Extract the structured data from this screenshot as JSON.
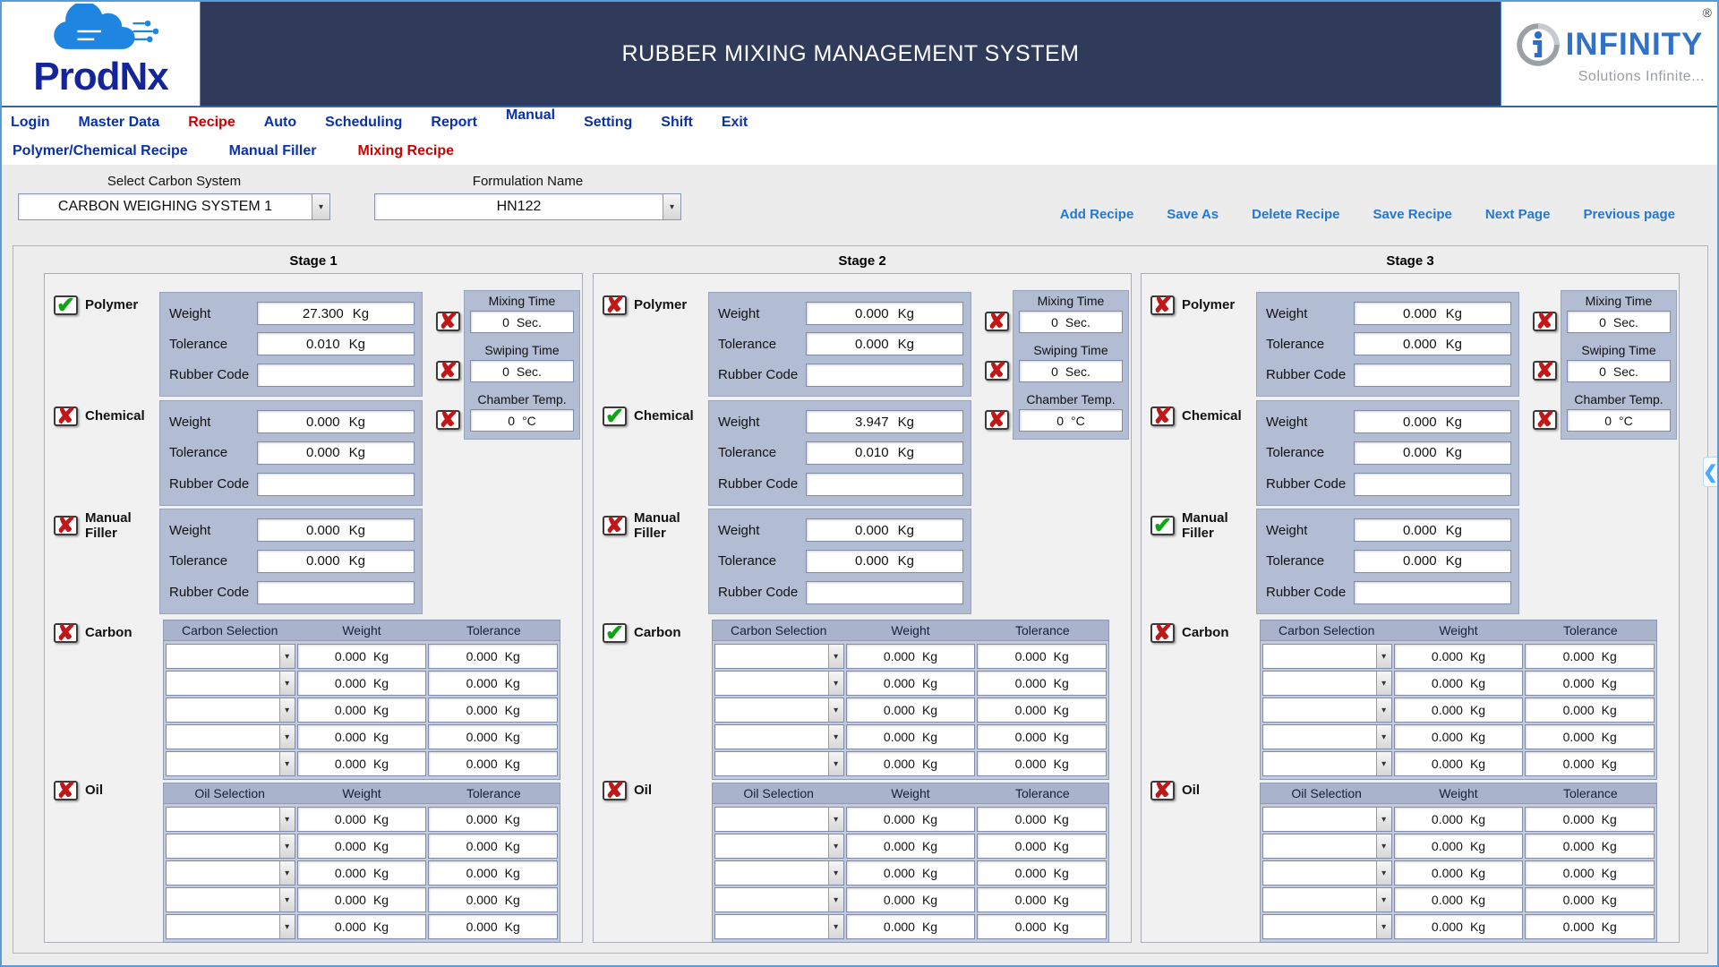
{
  "header": {
    "title": "RUBBER MIXING MANAGEMENT SYSTEM",
    "logo_left": {
      "text": "ProdNx"
    },
    "logo_right": {
      "brand": "INFINITY",
      "tagline": "Solutions Infinite...",
      "registered": "®"
    }
  },
  "menu": {
    "items": [
      {
        "label": "Login",
        "active": false
      },
      {
        "label": "Master Data",
        "active": false
      },
      {
        "label": "Recipe",
        "active": true
      },
      {
        "label": "Auto",
        "active": false
      },
      {
        "label": "Scheduling",
        "active": false
      },
      {
        "label": "Report",
        "active": false
      },
      {
        "label": "Manual",
        "active": false
      },
      {
        "label": "Setting",
        "active": false
      },
      {
        "label": "Shift",
        "active": false
      },
      {
        "label": "Exit",
        "active": false
      }
    ]
  },
  "submenu": {
    "items": [
      {
        "label": "Polymer/Chemical Recipe",
        "active": false
      },
      {
        "label": "Manual Filler",
        "active": false
      },
      {
        "label": "Mixing Recipe",
        "active": true
      }
    ]
  },
  "toolbar": {
    "carbon_system": {
      "label": "Select Carbon System",
      "value": "CARBON  WEIGHING SYSTEM 1"
    },
    "formulation": {
      "label": "Formulation Name",
      "value": "HN122"
    },
    "actions": [
      {
        "label": "Add Recipe"
      },
      {
        "label": "Save As"
      },
      {
        "label": "Delete Recipe"
      },
      {
        "label": "Save Recipe"
      },
      {
        "label": "Next Page"
      },
      {
        "label": "Previous page"
      }
    ]
  },
  "labels": {
    "polymer": "Polymer",
    "chemical": "Chemical",
    "manual_filler": "Manual Filler",
    "carbon": "Carbon",
    "oil": "Oil",
    "weight": "Weight",
    "tolerance": "Tolerance",
    "rubber_code": "Rubber Code",
    "mixing_time": "Mixing Time",
    "swiping_time": "Swiping Time",
    "chamber_temp": "Chamber Temp.",
    "carbon_selection": "Carbon Selection",
    "oil_selection": "Oil Selection"
  },
  "units": {
    "kg": "Kg",
    "sec": "Sec.",
    "temp": "°C"
  },
  "icons": {
    "check": "✔",
    "cross": "✘",
    "dropdown": "▾",
    "collapse": "❮"
  },
  "colors": {
    "header_navy": "#303b5c",
    "menu_blue": "#0a31a8",
    "active_red": "#d00000",
    "link_blue": "#2478cf",
    "group_bg": "#b2bcd2",
    "check_green": "#0da512",
    "cross_red": "#c21717"
  },
  "stages": [
    {
      "title": "Stage 1",
      "polymer": {
        "enabled": true,
        "weight": "27.300",
        "tolerance": "0.010",
        "rubber_code": ""
      },
      "chemical": {
        "enabled": false,
        "weight": "0.000",
        "tolerance": "0.000",
        "rubber_code": ""
      },
      "manual_filler": {
        "enabled": false,
        "weight": "0.000",
        "tolerance": "0.000",
        "rubber_code": ""
      },
      "times": {
        "mixing": {
          "enabled": false,
          "value": "0"
        },
        "swiping": {
          "enabled": false,
          "value": "0"
        },
        "chamber": {
          "enabled": false,
          "value": "0"
        }
      },
      "carbon": {
        "enabled": false,
        "rows": [
          {
            "selection": "",
            "weight": "0.000",
            "tolerance": "0.000"
          },
          {
            "selection": "",
            "weight": "0.000",
            "tolerance": "0.000"
          },
          {
            "selection": "",
            "weight": "0.000",
            "tolerance": "0.000"
          },
          {
            "selection": "",
            "weight": "0.000",
            "tolerance": "0.000"
          },
          {
            "selection": "",
            "weight": "0.000",
            "tolerance": "0.000"
          }
        ]
      },
      "oil": {
        "enabled": false,
        "rows": [
          {
            "selection": "",
            "weight": "0.000",
            "tolerance": "0.000"
          },
          {
            "selection": "",
            "weight": "0.000",
            "tolerance": "0.000"
          },
          {
            "selection": "",
            "weight": "0.000",
            "tolerance": "0.000"
          },
          {
            "selection": "",
            "weight": "0.000",
            "tolerance": "0.000"
          },
          {
            "selection": "",
            "weight": "0.000",
            "tolerance": "0.000"
          }
        ]
      }
    },
    {
      "title": "Stage 2",
      "polymer": {
        "enabled": false,
        "weight": "0.000",
        "tolerance": "0.000",
        "rubber_code": ""
      },
      "chemical": {
        "enabled": true,
        "weight": "3.947",
        "tolerance": "0.010",
        "rubber_code": ""
      },
      "manual_filler": {
        "enabled": false,
        "weight": "0.000",
        "tolerance": "0.000",
        "rubber_code": ""
      },
      "times": {
        "mixing": {
          "enabled": false,
          "value": "0"
        },
        "swiping": {
          "enabled": false,
          "value": "0"
        },
        "chamber": {
          "enabled": false,
          "value": "0"
        }
      },
      "carbon": {
        "enabled": true,
        "rows": [
          {
            "selection": "",
            "weight": "0.000",
            "tolerance": "0.000"
          },
          {
            "selection": "",
            "weight": "0.000",
            "tolerance": "0.000"
          },
          {
            "selection": "",
            "weight": "0.000",
            "tolerance": "0.000"
          },
          {
            "selection": "",
            "weight": "0.000",
            "tolerance": "0.000"
          },
          {
            "selection": "",
            "weight": "0.000",
            "tolerance": "0.000"
          }
        ]
      },
      "oil": {
        "enabled": false,
        "rows": [
          {
            "selection": "",
            "weight": "0.000",
            "tolerance": "0.000"
          },
          {
            "selection": "",
            "weight": "0.000",
            "tolerance": "0.000"
          },
          {
            "selection": "",
            "weight": "0.000",
            "tolerance": "0.000"
          },
          {
            "selection": "",
            "weight": "0.000",
            "tolerance": "0.000"
          },
          {
            "selection": "",
            "weight": "0.000",
            "tolerance": "0.000"
          }
        ]
      }
    },
    {
      "title": "Stage 3",
      "polymer": {
        "enabled": false,
        "weight": "0.000",
        "tolerance": "0.000",
        "rubber_code": ""
      },
      "chemical": {
        "enabled": false,
        "weight": "0.000",
        "tolerance": "0.000",
        "rubber_code": ""
      },
      "manual_filler": {
        "enabled": true,
        "weight": "0.000",
        "tolerance": "0.000",
        "rubber_code": ""
      },
      "times": {
        "mixing": {
          "enabled": false,
          "value": "0"
        },
        "swiping": {
          "enabled": false,
          "value": "0"
        },
        "chamber": {
          "enabled": false,
          "value": "0"
        }
      },
      "carbon": {
        "enabled": false,
        "rows": [
          {
            "selection": "",
            "weight": "0.000",
            "tolerance": "0.000"
          },
          {
            "selection": "",
            "weight": "0.000",
            "tolerance": "0.000"
          },
          {
            "selection": "",
            "weight": "0.000",
            "tolerance": "0.000"
          },
          {
            "selection": "",
            "weight": "0.000",
            "tolerance": "0.000"
          },
          {
            "selection": "",
            "weight": "0.000",
            "tolerance": "0.000"
          }
        ]
      },
      "oil": {
        "enabled": false,
        "rows": [
          {
            "selection": "",
            "weight": "0.000",
            "tolerance": "0.000"
          },
          {
            "selection": "",
            "weight": "0.000",
            "tolerance": "0.000"
          },
          {
            "selection": "",
            "weight": "0.000",
            "tolerance": "0.000"
          },
          {
            "selection": "",
            "weight": "0.000",
            "tolerance": "0.000"
          },
          {
            "selection": "",
            "weight": "0.000",
            "tolerance": "0.000"
          }
        ]
      }
    }
  ]
}
